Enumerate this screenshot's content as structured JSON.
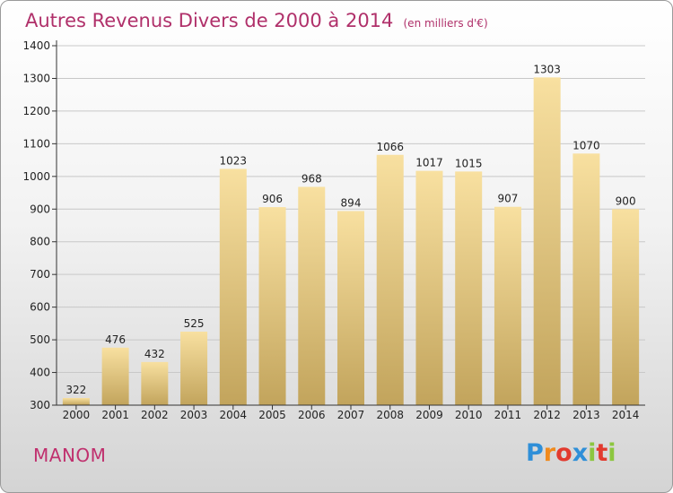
{
  "title": "Autres Revenus Divers de 2000 à 2014",
  "title_unit": "(en milliers d'€)",
  "commune": "MANOM",
  "logo": {
    "letters": [
      "P",
      "r",
      "o",
      "x",
      "i",
      "t",
      "i"
    ],
    "colors": [
      "#2f8fd8",
      "#f08a1c",
      "#e23a2e",
      "#2f8fd8",
      "#8cc63f",
      "#e23a2e",
      "#8cc63f"
    ]
  },
  "colors": {
    "title": "#b0306a",
    "bar_top": "#f8e0a0",
    "bar_bottom": "#c2a45c",
    "grid": "#c8c8c8"
  },
  "chart_data": {
    "type": "bar",
    "title": "Autres Revenus Divers de 2000 à 2014",
    "categories": [
      "2000",
      "2001",
      "2002",
      "2003",
      "2004",
      "2005",
      "2006",
      "2007",
      "2008",
      "2009",
      "2010",
      "2011",
      "2012",
      "2013",
      "2014"
    ],
    "values": [
      322,
      476,
      432,
      525,
      1023,
      906,
      968,
      894,
      1066,
      1017,
      1015,
      907,
      1303,
      1070,
      900
    ],
    "ylim": [
      300,
      1400
    ],
    "yticks": [
      300,
      400,
      500,
      600,
      700,
      800,
      900,
      1000,
      1100,
      1200,
      1300,
      1400
    ],
    "xlabel": "",
    "ylabel": "",
    "grid": "horizontal",
    "data_labels": true
  }
}
